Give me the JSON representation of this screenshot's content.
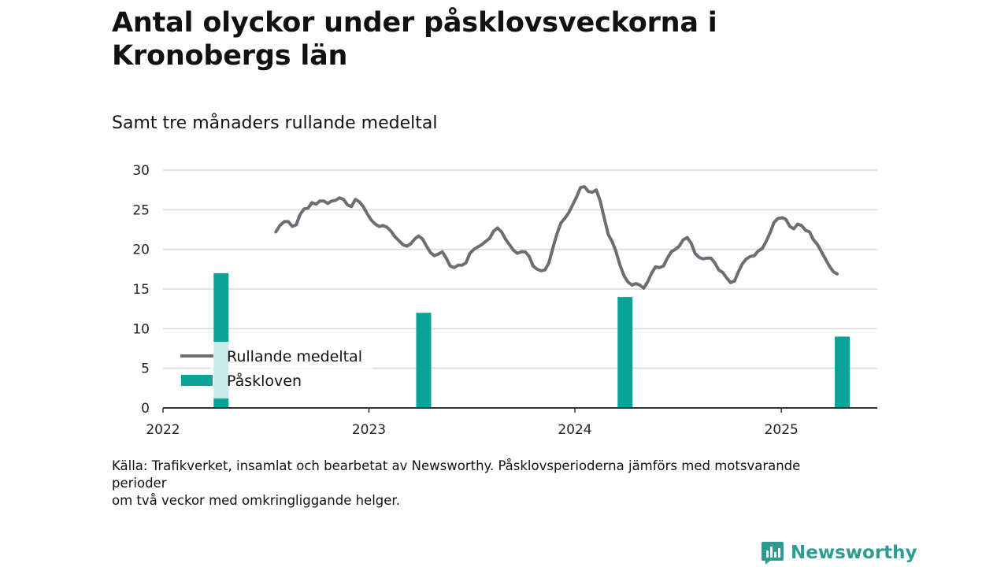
{
  "title": "Antal olyckor under påsklovsveckorna i Kronobergs län",
  "subtitle": "Samt tre månaders rullande medeltal",
  "source_lines": [
    "Källa: Trafikverket, insamlat och bearbetat av Newsworthy. Påsklovsperioderna jämförs med motsvarande perioder",
    "om två veckor med omkringliggande helger."
  ],
  "brand": {
    "name": "Newsworthy",
    "icon": "newsworthy-logo-icon",
    "color": "#2f9c94"
  },
  "colors": {
    "line": "#6e6c75",
    "bar": "#0aa398",
    "grid": "#d9d9d9",
    "axis": "#333333"
  },
  "chart_data": {
    "type": "bar+line",
    "ylim": [
      0,
      30
    ],
    "yticks": [
      0,
      5,
      10,
      15,
      20,
      25,
      30
    ],
    "xlim": [
      "2022-01-01",
      "2025-06-20"
    ],
    "xticks": [
      {
        "label": "2022",
        "date": "2022-01-01"
      },
      {
        "label": "2023",
        "date": "2023-01-01"
      },
      {
        "label": "2024",
        "date": "2024-01-01"
      },
      {
        "label": "2025",
        "date": "2025-01-01"
      }
    ],
    "grid": true,
    "legend": {
      "placement": "bottom-left",
      "items": [
        {
          "label": "Rullande medeltal",
          "kind": "line"
        },
        {
          "label": "Påskloven",
          "kind": "bar"
        }
      ]
    },
    "series": [
      {
        "name": "Påskloven",
        "kind": "bar",
        "points": [
          {
            "x": "2022-04-14",
            "y": 17
          },
          {
            "x": "2023-04-08",
            "y": 12
          },
          {
            "x": "2024-03-30",
            "y": 14
          },
          {
            "x": "2025-04-19",
            "y": 9
          }
        ]
      },
      {
        "name": "Rullande medeltal",
        "kind": "line",
        "points": [
          {
            "x": "2022-07-20",
            "y": 22.2
          },
          {
            "x": "2022-07-27",
            "y": 23.0
          },
          {
            "x": "2022-08-04",
            "y": 23.5
          },
          {
            "x": "2022-08-11",
            "y": 23.5
          },
          {
            "x": "2022-08-18",
            "y": 22.9
          },
          {
            "x": "2022-08-25",
            "y": 23.1
          },
          {
            "x": "2022-09-01",
            "y": 24.4
          },
          {
            "x": "2022-09-08",
            "y": 25.1
          },
          {
            "x": "2022-09-15",
            "y": 25.2
          },
          {
            "x": "2022-09-22",
            "y": 25.9
          },
          {
            "x": "2022-09-29",
            "y": 25.7
          },
          {
            "x": "2022-10-06",
            "y": 26.1
          },
          {
            "x": "2022-10-13",
            "y": 26.1
          },
          {
            "x": "2022-10-20",
            "y": 25.8
          },
          {
            "x": "2022-10-27",
            "y": 26.1
          },
          {
            "x": "2022-11-03",
            "y": 26.2
          },
          {
            "x": "2022-11-10",
            "y": 26.5
          },
          {
            "x": "2022-11-17",
            "y": 26.3
          },
          {
            "x": "2022-11-24",
            "y": 25.6
          },
          {
            "x": "2022-12-01",
            "y": 25.4
          },
          {
            "x": "2022-12-08",
            "y": 26.3
          },
          {
            "x": "2022-12-15",
            "y": 26.0
          },
          {
            "x": "2022-12-22",
            "y": 25.4
          },
          {
            "x": "2022-12-29",
            "y": 24.5
          },
          {
            "x": "2023-01-05",
            "y": 23.7
          },
          {
            "x": "2023-01-12",
            "y": 23.2
          },
          {
            "x": "2023-01-19",
            "y": 22.9
          },
          {
            "x": "2023-01-26",
            "y": 23.0
          },
          {
            "x": "2023-02-02",
            "y": 22.8
          },
          {
            "x": "2023-02-09",
            "y": 22.3
          },
          {
            "x": "2023-02-16",
            "y": 21.6
          },
          {
            "x": "2023-02-23",
            "y": 21.1
          },
          {
            "x": "2023-03-02",
            "y": 20.6
          },
          {
            "x": "2023-03-09",
            "y": 20.4
          },
          {
            "x": "2023-03-16",
            "y": 20.7
          },
          {
            "x": "2023-03-23",
            "y": 21.3
          },
          {
            "x": "2023-03-30",
            "y": 21.7
          },
          {
            "x": "2023-04-06",
            "y": 21.3
          },
          {
            "x": "2023-04-13",
            "y": 20.4
          },
          {
            "x": "2023-04-20",
            "y": 19.6
          },
          {
            "x": "2023-04-27",
            "y": 19.2
          },
          {
            "x": "2023-05-04",
            "y": 19.4
          },
          {
            "x": "2023-05-11",
            "y": 19.7
          },
          {
            "x": "2023-05-18",
            "y": 18.9
          },
          {
            "x": "2023-05-25",
            "y": 17.9
          },
          {
            "x": "2023-06-01",
            "y": 17.7
          },
          {
            "x": "2023-06-08",
            "y": 18.0
          },
          {
            "x": "2023-06-15",
            "y": 18.0
          },
          {
            "x": "2023-06-22",
            "y": 18.3
          },
          {
            "x": "2023-06-29",
            "y": 19.5
          },
          {
            "x": "2023-07-06",
            "y": 20.0
          },
          {
            "x": "2023-07-13",
            "y": 20.3
          },
          {
            "x": "2023-07-20",
            "y": 20.6
          },
          {
            "x": "2023-07-27",
            "y": 21.0
          },
          {
            "x": "2023-08-03",
            "y": 21.4
          },
          {
            "x": "2023-08-10",
            "y": 22.3
          },
          {
            "x": "2023-08-17",
            "y": 22.7
          },
          {
            "x": "2023-08-24",
            "y": 22.2
          },
          {
            "x": "2023-08-31",
            "y": 21.3
          },
          {
            "x": "2023-09-07",
            "y": 20.6
          },
          {
            "x": "2023-09-14",
            "y": 19.9
          },
          {
            "x": "2023-09-21",
            "y": 19.5
          },
          {
            "x": "2023-09-28",
            "y": 19.7
          },
          {
            "x": "2023-10-05",
            "y": 19.7
          },
          {
            "x": "2023-10-12",
            "y": 19.1
          },
          {
            "x": "2023-10-19",
            "y": 17.9
          },
          {
            "x": "2023-10-26",
            "y": 17.5
          },
          {
            "x": "2023-11-02",
            "y": 17.3
          },
          {
            "x": "2023-11-09",
            "y": 17.4
          },
          {
            "x": "2023-11-16",
            "y": 18.3
          },
          {
            "x": "2023-11-23",
            "y": 20.2
          },
          {
            "x": "2023-11-30",
            "y": 21.9
          },
          {
            "x": "2023-12-07",
            "y": 23.3
          },
          {
            "x": "2023-12-14",
            "y": 23.9
          },
          {
            "x": "2023-12-21",
            "y": 24.6
          },
          {
            "x": "2023-12-28",
            "y": 25.6
          },
          {
            "x": "2024-01-04",
            "y": 26.6
          },
          {
            "x": "2024-01-11",
            "y": 27.8
          },
          {
            "x": "2024-01-18",
            "y": 27.9
          },
          {
            "x": "2024-01-25",
            "y": 27.3
          },
          {
            "x": "2024-02-01",
            "y": 27.2
          },
          {
            "x": "2024-02-08",
            "y": 27.5
          },
          {
            "x": "2024-02-15",
            "y": 26.1
          },
          {
            "x": "2024-02-22",
            "y": 24.0
          },
          {
            "x": "2024-02-29",
            "y": 21.9
          },
          {
            "x": "2024-03-07",
            "y": 21.0
          },
          {
            "x": "2024-03-14",
            "y": 19.7
          },
          {
            "x": "2024-03-21",
            "y": 18.0
          },
          {
            "x": "2024-03-28",
            "y": 16.7
          },
          {
            "x": "2024-04-04",
            "y": 15.9
          },
          {
            "x": "2024-04-11",
            "y": 15.5
          },
          {
            "x": "2024-04-18",
            "y": 15.7
          },
          {
            "x": "2024-04-25",
            "y": 15.5
          },
          {
            "x": "2024-05-02",
            "y": 15.1
          },
          {
            "x": "2024-05-09",
            "y": 15.9
          },
          {
            "x": "2024-05-16",
            "y": 17.0
          },
          {
            "x": "2024-05-23",
            "y": 17.8
          },
          {
            "x": "2024-05-30",
            "y": 17.7
          },
          {
            "x": "2024-06-06",
            "y": 17.9
          },
          {
            "x": "2024-06-13",
            "y": 18.9
          },
          {
            "x": "2024-06-20",
            "y": 19.7
          },
          {
            "x": "2024-06-27",
            "y": 20.0
          },
          {
            "x": "2024-07-04",
            "y": 20.4
          },
          {
            "x": "2024-07-11",
            "y": 21.2
          },
          {
            "x": "2024-07-18",
            "y": 21.5
          },
          {
            "x": "2024-07-25",
            "y": 20.8
          },
          {
            "x": "2024-08-01",
            "y": 19.5
          },
          {
            "x": "2024-08-08",
            "y": 19.0
          },
          {
            "x": "2024-08-15",
            "y": 18.8
          },
          {
            "x": "2024-08-22",
            "y": 18.9
          },
          {
            "x": "2024-08-29",
            "y": 18.9
          },
          {
            "x": "2024-09-05",
            "y": 18.3
          },
          {
            "x": "2024-09-12",
            "y": 17.4
          },
          {
            "x": "2024-09-19",
            "y": 17.1
          },
          {
            "x": "2024-09-26",
            "y": 16.4
          },
          {
            "x": "2024-10-03",
            "y": 15.8
          },
          {
            "x": "2024-10-10",
            "y": 16.0
          },
          {
            "x": "2024-10-17",
            "y": 17.2
          },
          {
            "x": "2024-10-24",
            "y": 18.2
          },
          {
            "x": "2024-10-31",
            "y": 18.8
          },
          {
            "x": "2024-11-07",
            "y": 19.1
          },
          {
            "x": "2024-11-14",
            "y": 19.2
          },
          {
            "x": "2024-11-21",
            "y": 19.8
          },
          {
            "x": "2024-11-28",
            "y": 20.1
          },
          {
            "x": "2024-12-05",
            "y": 21.0
          },
          {
            "x": "2024-12-12",
            "y": 22.1
          },
          {
            "x": "2024-12-19",
            "y": 23.4
          },
          {
            "x": "2024-12-26",
            "y": 23.9
          },
          {
            "x": "2025-01-02",
            "y": 24.0
          },
          {
            "x": "2025-01-09",
            "y": 23.8
          },
          {
            "x": "2025-01-16",
            "y": 22.9
          },
          {
            "x": "2025-01-23",
            "y": 22.6
          },
          {
            "x": "2025-01-30",
            "y": 23.2
          },
          {
            "x": "2025-02-06",
            "y": 23.0
          },
          {
            "x": "2025-02-13",
            "y": 22.4
          },
          {
            "x": "2025-02-20",
            "y": 22.2
          },
          {
            "x": "2025-02-27",
            "y": 21.2
          },
          {
            "x": "2025-03-06",
            "y": 20.6
          },
          {
            "x": "2025-03-13",
            "y": 19.7
          },
          {
            "x": "2025-03-20",
            "y": 18.8
          },
          {
            "x": "2025-03-27",
            "y": 17.9
          },
          {
            "x": "2025-04-03",
            "y": 17.2
          },
          {
            "x": "2025-04-10",
            "y": 16.9
          }
        ]
      }
    ]
  }
}
